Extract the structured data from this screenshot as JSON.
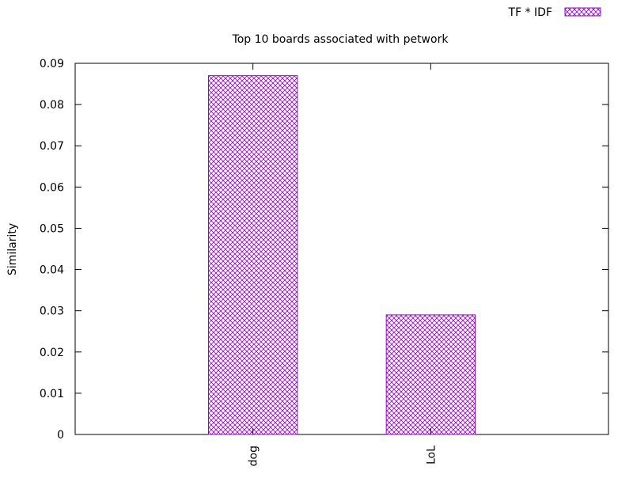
{
  "chart_data": {
    "type": "bar",
    "title": "Top 10 boards associated with petwork",
    "xlabel": "",
    "ylabel": "Similarity",
    "categories": [
      "dog",
      "LoL"
    ],
    "series": [
      {
        "name": "TF * IDF",
        "values": [
          0.087,
          0.029
        ]
      }
    ],
    "ylim": [
      0,
      0.09
    ],
    "yticks": [
      "0",
      "0.01",
      "0.02",
      "0.03",
      "0.04",
      "0.05",
      "0.06",
      "0.07",
      "0.08",
      "0.09"
    ],
    "grid": false,
    "legend_position": "top-right",
    "bar_fill": "cross-hatch",
    "bar_color": "#9400d3"
  }
}
